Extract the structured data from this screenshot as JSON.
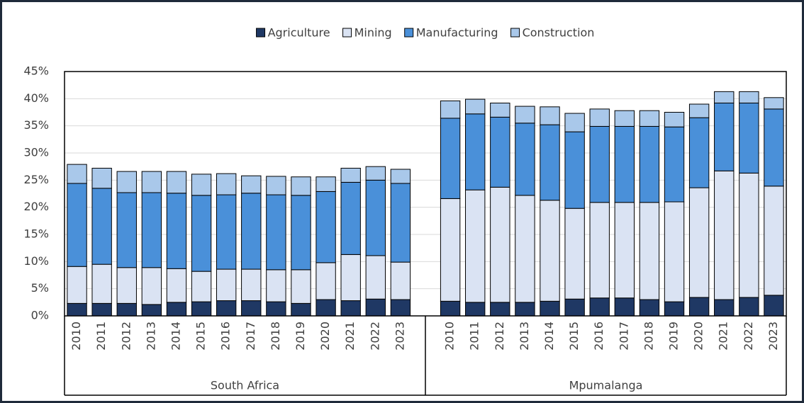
{
  "chart_data": {
    "type": "stacked-bar",
    "categories": [
      "2010",
      "2011",
      "2012",
      "2013",
      "2014",
      "2015",
      "2016",
      "2017",
      "2018",
      "2019",
      "2020",
      "2021",
      "2022",
      "2023",
      null,
      "2010",
      "2011",
      "2012",
      "2013",
      "2014",
      "2015",
      "2016",
      "2017",
      "2018",
      "2019",
      "2020",
      "2021",
      "2022",
      "2023"
    ],
    "group_labels": [
      "South Africa",
      "Mpumalanga"
    ],
    "series": [
      {
        "name": "Agriculture",
        "color": "#1f3864",
        "values": [
          2.3,
          2.3,
          2.3,
          2.1,
          2.5,
          2.6,
          2.8,
          2.8,
          2.6,
          2.3,
          3.0,
          2.8,
          3.1,
          3.0,
          null,
          2.7,
          2.5,
          2.5,
          2.5,
          2.7,
          3.1,
          3.3,
          3.3,
          3.0,
          2.6,
          3.4,
          3.0,
          3.4,
          3.8
        ]
      },
      {
        "name": "Mining",
        "color": "#dae3f3",
        "values": [
          6.8,
          7.2,
          6.6,
          6.8,
          6.2,
          5.6,
          5.8,
          5.8,
          5.9,
          6.2,
          6.8,
          8.5,
          8.0,
          6.9,
          null,
          18.9,
          20.7,
          21.2,
          19.7,
          18.6,
          16.7,
          17.6,
          17.6,
          17.9,
          18.4,
          20.2,
          23.7,
          22.9,
          20.1
        ]
      },
      {
        "name": "Manufacturing",
        "color": "#4a90d9",
        "values": [
          15.3,
          14.0,
          13.8,
          13.8,
          13.9,
          14.0,
          13.7,
          14.0,
          13.8,
          13.7,
          13.1,
          13.3,
          13.9,
          14.5,
          null,
          14.8,
          14.0,
          12.9,
          13.3,
          13.9,
          14.1,
          14.0,
          14.0,
          14.0,
          13.8,
          12.9,
          12.5,
          12.9,
          14.2
        ]
      },
      {
        "name": "Construction",
        "color": "#a9c8ea",
        "values": [
          3.5,
          3.7,
          3.9,
          3.9,
          4.0,
          3.9,
          3.9,
          3.2,
          3.4,
          3.4,
          2.7,
          2.6,
          2.5,
          2.6,
          null,
          3.2,
          2.7,
          2.6,
          3.1,
          3.3,
          3.4,
          3.2,
          2.9,
          2.9,
          2.7,
          2.5,
          2.1,
          2.1,
          2.1
        ]
      }
    ],
    "ylim": [
      0,
      45
    ],
    "yticks": [
      {
        "value": 0,
        "label": "0%"
      },
      {
        "value": 5,
        "label": "5%"
      },
      {
        "value": 10,
        "label": "10%"
      },
      {
        "value": 15,
        "label": "15%"
      },
      {
        "value": 20,
        "label": "20%"
      },
      {
        "value": 25,
        "label": "25%"
      },
      {
        "value": 30,
        "label": "30%"
      },
      {
        "value": 35,
        "label": "35%"
      },
      {
        "value": 40,
        "label": "40%"
      },
      {
        "value": 45,
        "label": "45%"
      }
    ],
    "grid": true,
    "legend": "top"
  }
}
